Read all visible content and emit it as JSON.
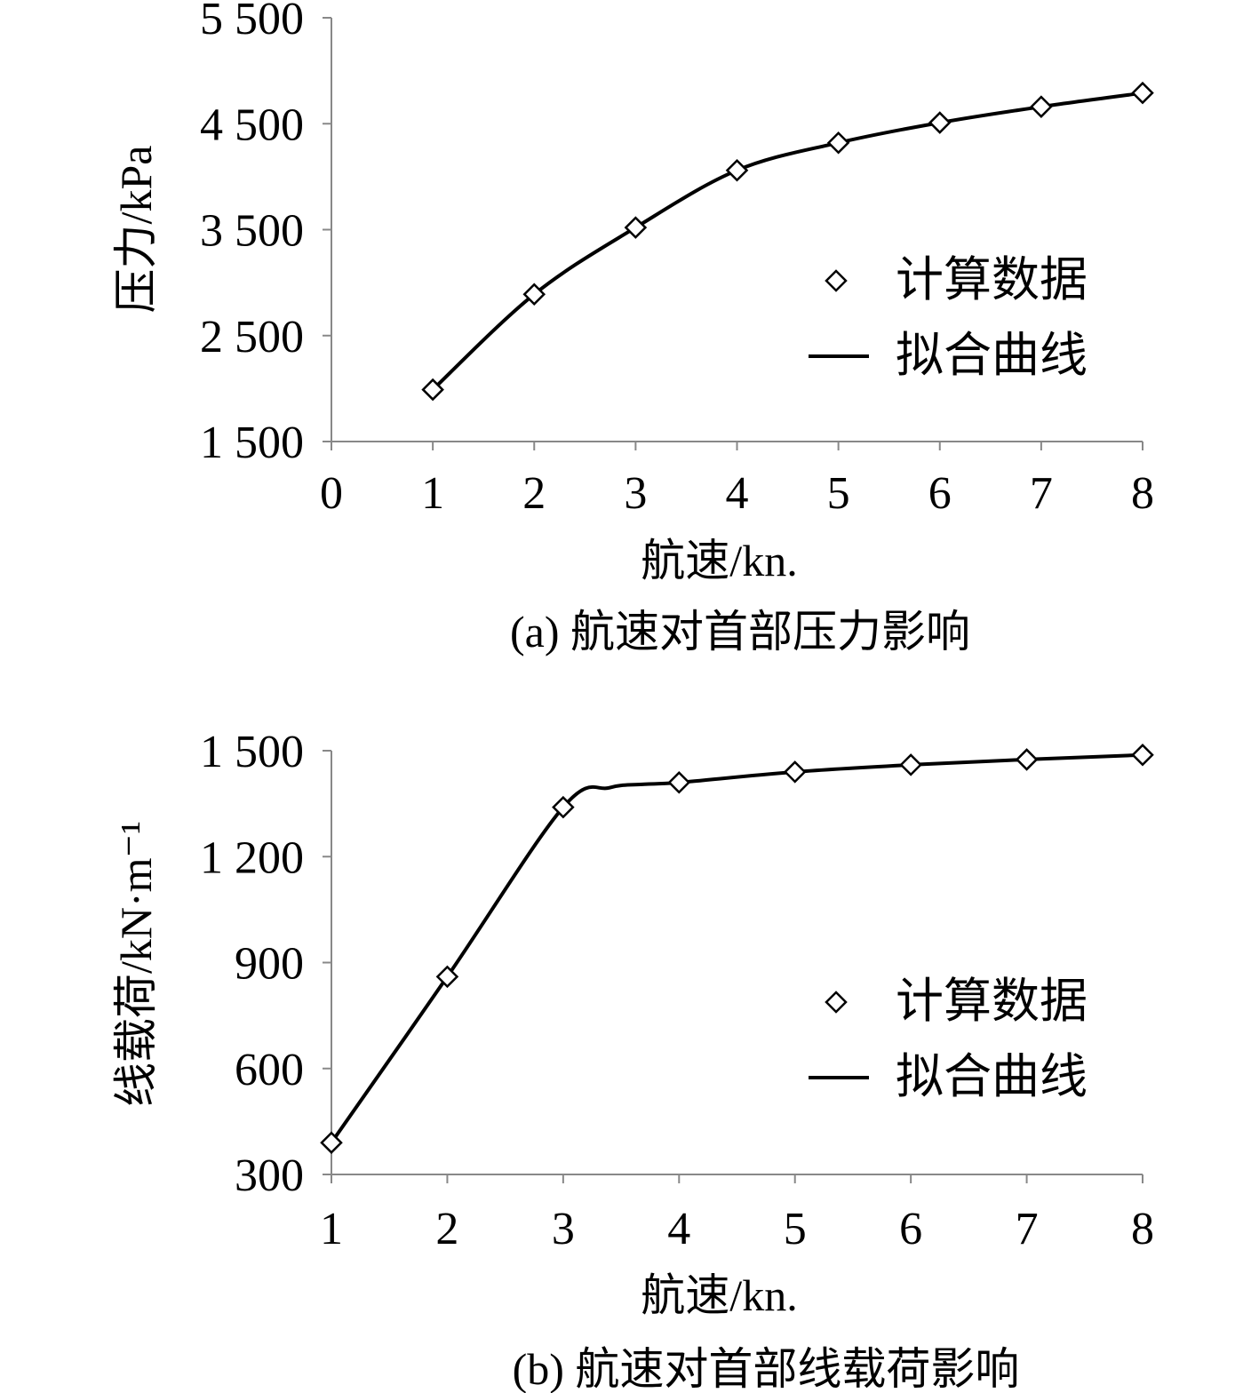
{
  "chart_data": [
    {
      "type": "line",
      "caption": "(a) 航速对首部压力影响",
      "xlabel": "航速/kn.",
      "ylabel": "压力/kPa",
      "xlim": [
        0,
        8
      ],
      "ylim": [
        1500,
        5500
      ],
      "xticks": [
        0,
        1,
        2,
        3,
        4,
        5,
        6,
        7,
        8
      ],
      "xtick_labels": [
        "0",
        "1",
        "2",
        "3",
        "4",
        "5",
        "6",
        "7",
        "8"
      ],
      "yticks": [
        1500,
        2500,
        3500,
        4500,
        5500
      ],
      "ytick_labels": [
        "1 500",
        "2 500",
        "3 500",
        "4 500",
        "5 500"
      ],
      "grid": false,
      "legend_position": "center-right",
      "legend": [
        {
          "label": "计算数据",
          "marker": "diamond"
        },
        {
          "label": "拟合曲线",
          "marker": "line"
        }
      ],
      "series": [
        {
          "name": "计算数据",
          "style": "marker",
          "x": [
            1,
            2,
            3,
            4,
            5,
            6,
            7,
            8
          ],
          "y": [
            1990,
            2890,
            3520,
            4060,
            4320,
            4510,
            4660,
            4790
          ]
        },
        {
          "name": "拟合曲线",
          "style": "line",
          "x": [
            1,
            2,
            3,
            4,
            5,
            6,
            7,
            8
          ],
          "y": [
            1990,
            2890,
            3520,
            4060,
            4320,
            4510,
            4660,
            4790
          ]
        }
      ]
    },
    {
      "type": "line",
      "caption": "(b) 航速对首部线载荷影响",
      "xlabel": "航速/kn.",
      "ylabel": "线载荷/kN·m⁻¹",
      "xlim": [
        1,
        8
      ],
      "ylim": [
        300,
        1500
      ],
      "xticks": [
        1,
        2,
        3,
        4,
        5,
        6,
        7,
        8
      ],
      "xtick_labels": [
        "1",
        "2",
        "3",
        "4",
        "5",
        "6",
        "7",
        "8"
      ],
      "yticks": [
        300,
        600,
        900,
        1200,
        1500
      ],
      "ytick_labels": [
        "300",
        "600",
        "900",
        "1 200",
        "1 500"
      ],
      "grid": false,
      "legend_position": "center-right",
      "legend": [
        {
          "label": "计算数据",
          "marker": "diamond"
        },
        {
          "label": "拟合曲线",
          "marker": "line"
        }
      ],
      "series": [
        {
          "name": "计算数据",
          "style": "marker",
          "x": [
            1,
            2,
            3,
            4,
            5,
            6,
            7,
            8
          ],
          "y": [
            390,
            860,
            1340,
            1410,
            1440,
            1460,
            1475,
            1488
          ]
        },
        {
          "name": "拟合曲线",
          "style": "line",
          "x": [
            1,
            2,
            3,
            3.4,
            3.7,
            4,
            5,
            6,
            7,
            8
          ],
          "y": [
            390,
            860,
            1340,
            1395,
            1405,
            1410,
            1440,
            1460,
            1475,
            1488
          ]
        }
      ]
    }
  ]
}
